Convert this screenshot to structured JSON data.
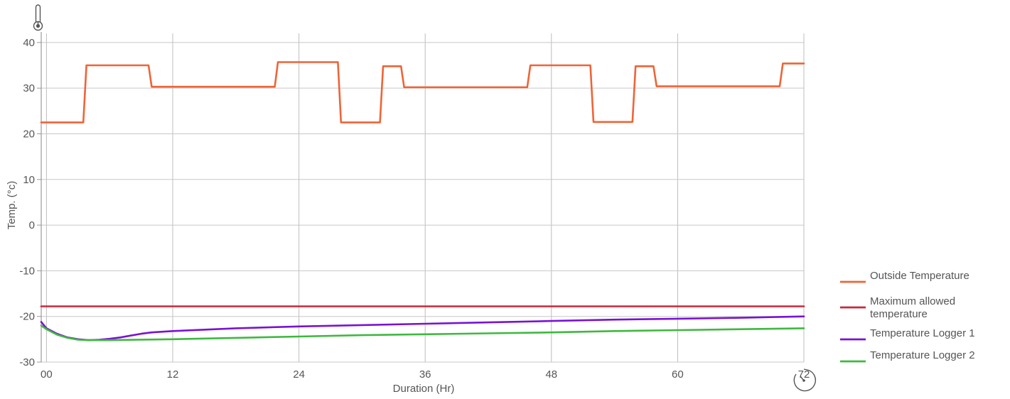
{
  "chart_data": {
    "type": "line",
    "title": "",
    "xlabel": "Duration (Hr)",
    "ylabel": "Temp. (°c)",
    "xlim": [
      -0.5,
      72
    ],
    "ylim": [
      -30,
      42
    ],
    "x_ticks": [
      0,
      12,
      24,
      36,
      48,
      60,
      72
    ],
    "x_tick_labels": [
      "00",
      "12",
      "24",
      "36",
      "48",
      "60",
      "72"
    ],
    "y_ticks": [
      40,
      30,
      20,
      10,
      0,
      -10,
      -20,
      -30
    ],
    "y_tick_labels": [
      "40",
      "30",
      "20",
      "10",
      "0",
      "-10",
      "-20",
      "-30"
    ],
    "grid": true,
    "legend_position": "bottom-right",
    "icons": {
      "y_axis": "thermometer-icon",
      "x_axis": "stopwatch-icon"
    },
    "series": [
      {
        "name": "Outside Temperature",
        "color": "#ee6437",
        "points": [
          [
            -0.5,
            22.5
          ],
          [
            3.5,
            22.5
          ],
          [
            3.8,
            35
          ],
          [
            9.7,
            35
          ],
          [
            10,
            30.3
          ],
          [
            21.7,
            30.3
          ],
          [
            22,
            35.7
          ],
          [
            27.7,
            35.7
          ],
          [
            28,
            22.5
          ],
          [
            31.7,
            22.5
          ],
          [
            32,
            34.8
          ],
          [
            33.7,
            34.8
          ],
          [
            34,
            30.2
          ],
          [
            45.7,
            30.2
          ],
          [
            46,
            35
          ],
          [
            51.7,
            35
          ],
          [
            52,
            22.6
          ],
          [
            55.7,
            22.6
          ],
          [
            56,
            34.8
          ],
          [
            57.7,
            34.8
          ],
          [
            58,
            30.4
          ],
          [
            69.7,
            30.4
          ],
          [
            70,
            35.4
          ],
          [
            72,
            35.4
          ]
        ]
      },
      {
        "name": "Maximum allowed temperature",
        "color": "#c8283c",
        "points": [
          [
            -0.5,
            -17.8
          ],
          [
            72,
            -17.8
          ]
        ]
      },
      {
        "name": "Temperature Logger 1",
        "color": "#7a12d4",
        "points": [
          [
            -0.5,
            -21.2
          ],
          [
            0,
            -22.6
          ],
          [
            1,
            -23.8
          ],
          [
            2,
            -24.6
          ],
          [
            3,
            -25
          ],
          [
            4,
            -25.2
          ],
          [
            5,
            -25.1
          ],
          [
            6,
            -24.9
          ],
          [
            7,
            -24.6
          ],
          [
            8,
            -24.2
          ],
          [
            9,
            -23.8
          ],
          [
            10,
            -23.5
          ],
          [
            12,
            -23.2
          ],
          [
            18,
            -22.6
          ],
          [
            24,
            -22.2
          ],
          [
            30,
            -21.9
          ],
          [
            36,
            -21.6
          ],
          [
            42,
            -21.3
          ],
          [
            48,
            -21.0
          ],
          [
            54,
            -20.7
          ],
          [
            60,
            -20.5
          ],
          [
            66,
            -20.3
          ],
          [
            72,
            -20.0
          ]
        ]
      },
      {
        "name": "Temperature Logger 2",
        "color": "#3fb83f",
        "points": [
          [
            -0.5,
            -22.0
          ],
          [
            0,
            -22.8
          ],
          [
            1,
            -24.0
          ],
          [
            2,
            -24.7
          ],
          [
            3,
            -25.1
          ],
          [
            4,
            -25.2
          ],
          [
            6,
            -25.2
          ],
          [
            12,
            -25.0
          ],
          [
            18,
            -24.7
          ],
          [
            24,
            -24.4
          ],
          [
            30,
            -24.1
          ],
          [
            36,
            -23.9
          ],
          [
            42,
            -23.7
          ],
          [
            48,
            -23.5
          ],
          [
            54,
            -23.2
          ],
          [
            60,
            -23.0
          ],
          [
            66,
            -22.8
          ],
          [
            72,
            -22.6
          ]
        ]
      }
    ],
    "legend": [
      {
        "lines": [
          "Outside Temperature"
        ],
        "color": "#ee6437"
      },
      {
        "lines": [
          "Maximum allowed",
          "temperature"
        ],
        "color": "#c8283c"
      },
      {
        "lines": [
          "Temperature Logger 1"
        ],
        "color": "#7a12d4"
      },
      {
        "lines": [
          "Temperature Logger 2"
        ],
        "color": "#3fb83f"
      }
    ]
  }
}
